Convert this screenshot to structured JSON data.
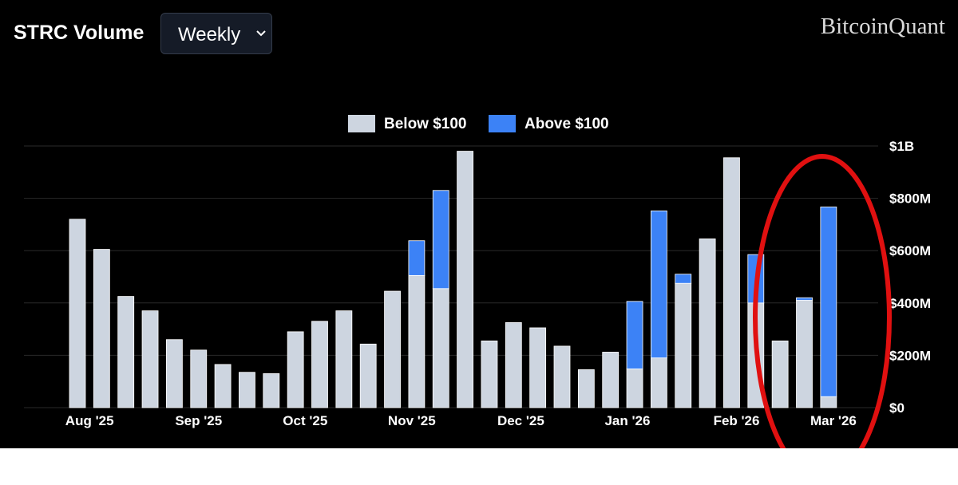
{
  "header": {
    "title": "STRC Volume",
    "period_select": {
      "value": "Weekly"
    },
    "brand": "BitcoinQuant"
  },
  "icons": {
    "dropdown": "chevron-down-icon"
  },
  "colors": {
    "background": "#000000",
    "below": "#cdd5e0",
    "above": "#3c82f6",
    "annotation": "#e01010"
  },
  "chart_data": {
    "type": "bar",
    "stacked": true,
    "y_axis_position": "right",
    "ylim": [
      0,
      1000
    ],
    "y_unit": "millions USD",
    "yticks": [
      {
        "value": 0,
        "label": "$0"
      },
      {
        "value": 200,
        "label": "$200M"
      },
      {
        "value": 400,
        "label": "$400M"
      },
      {
        "value": 600,
        "label": "$600M"
      },
      {
        "value": 800,
        "label": "$800M"
      },
      {
        "value": 1000,
        "label": "$1B"
      }
    ],
    "xticks": [
      {
        "index": 0.5,
        "label": "Aug '25"
      },
      {
        "index": 5,
        "label": "Sep '25"
      },
      {
        "index": 9.4,
        "label": "Oct '25"
      },
      {
        "index": 13.8,
        "label": "Nov '25"
      },
      {
        "index": 18.3,
        "label": "Dec '25"
      },
      {
        "index": 22.7,
        "label": "Jan '26"
      },
      {
        "index": 27.2,
        "label": "Feb '26"
      },
      {
        "index": 31.2,
        "label": "Mar '26"
      }
    ],
    "legend": {
      "position": "top-center"
    },
    "series": [
      {
        "name": "Below $100",
        "values": [
          720,
          605,
          425,
          370,
          260,
          220,
          165,
          135,
          130,
          290,
          330,
          370,
          243,
          445,
          505,
          455,
          980,
          255,
          325,
          305,
          235,
          145,
          212,
          148,
          190,
          475,
          645,
          955,
          400,
          255,
          410,
          42
        ]
      },
      {
        "name": "Above $100",
        "values": [
          0,
          0,
          0,
          0,
          0,
          0,
          0,
          0,
          0,
          0,
          0,
          0,
          0,
          0,
          133,
          375,
          0,
          0,
          0,
          0,
          0,
          0,
          0,
          258,
          562,
          35,
          0,
          0,
          185,
          0,
          10,
          725
        ]
      }
    ],
    "annotation": {
      "type": "ellipse",
      "around": "last three weeks",
      "color": "#e01010"
    }
  }
}
